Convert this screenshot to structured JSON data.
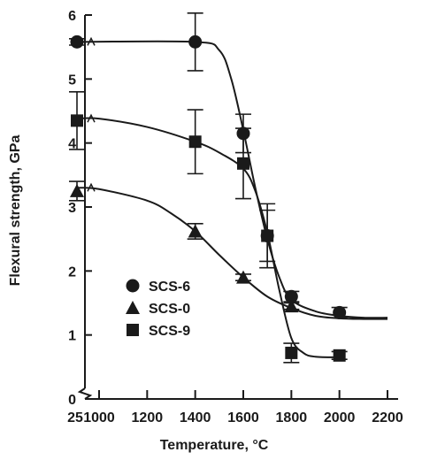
{
  "chart_data": {
    "type": "scatter",
    "title": "",
    "xlabel": "Temperature, °C",
    "ylabel": "Flexural strength, GPa",
    "x_tick_labels": [
      "25",
      "1000",
      "1200",
      "1400",
      "1600",
      "1800",
      "2000",
      "2200"
    ],
    "y_tick_labels": [
      "0",
      "1",
      "2",
      "3",
      "4",
      "5",
      "6"
    ],
    "xlim": [
      1000,
      2200
    ],
    "ylim": [
      0,
      6
    ],
    "x_axis_break_after": "25",
    "grid": false,
    "legend_position": "left-middle",
    "marker_color": "#1a1a1a",
    "series": [
      {
        "name": "SCS-6",
        "marker": "circle",
        "points": [
          {
            "x": "25",
            "y": 5.58,
            "err": 0.05
          },
          {
            "x": 1400,
            "y": 5.58,
            "err": 0.45
          },
          {
            "x": 1600,
            "y": 4.15,
            "err": 0.3
          },
          {
            "x": 1700,
            "y": 2.55,
            "err": 0.4
          },
          {
            "x": 1800,
            "y": 1.6,
            "err": 0.08
          },
          {
            "x": 2000,
            "y": 1.35,
            "err": 0.08
          }
        ],
        "curve": [
          {
            "x": "25",
            "y": 5.58
          },
          {
            "x": 1400,
            "y": 5.58
          },
          {
            "x": 1500,
            "y": 5.45
          },
          {
            "x": 1550,
            "y": 5.0
          },
          {
            "x": 1600,
            "y": 4.2
          },
          {
            "x": 1650,
            "y": 3.3
          },
          {
            "x": 1700,
            "y": 2.5
          },
          {
            "x": 1750,
            "y": 1.9
          },
          {
            "x": 1800,
            "y": 1.55
          },
          {
            "x": 1900,
            "y": 1.37
          },
          {
            "x": 2000,
            "y": 1.3
          },
          {
            "x": 2100,
            "y": 1.27
          },
          {
            "x": 2200,
            "y": 1.27
          }
        ]
      },
      {
        "name": "SCS-0",
        "marker": "triangle",
        "points": [
          {
            "x": "25",
            "y": 3.25,
            "err": 0.15
          },
          {
            "x": 1400,
            "y": 2.62,
            "err": 0.12
          },
          {
            "x": 1600,
            "y": 1.9,
            "err": 0.05
          },
          {
            "x": 1800,
            "y": 1.45,
            "err": 0.05
          }
        ],
        "curve": [
          {
            "x": "25",
            "y": 3.3
          },
          {
            "x": 1000,
            "y": 3.28
          },
          {
            "x": 1200,
            "y": 3.1
          },
          {
            "x": 1300,
            "y": 2.9
          },
          {
            "x": 1400,
            "y": 2.62
          },
          {
            "x": 1500,
            "y": 2.25
          },
          {
            "x": 1600,
            "y": 1.9
          },
          {
            "x": 1700,
            "y": 1.6
          },
          {
            "x": 1800,
            "y": 1.42
          },
          {
            "x": 1900,
            "y": 1.3
          },
          {
            "x": 2000,
            "y": 1.26
          },
          {
            "x": 2100,
            "y": 1.25
          },
          {
            "x": 2200,
            "y": 1.25
          }
        ]
      },
      {
        "name": "SCS-9",
        "marker": "square",
        "points": [
          {
            "x": "25",
            "y": 4.35,
            "err": 0.45
          },
          {
            "x": 1400,
            "y": 4.02,
            "err": 0.5
          },
          {
            "x": 1600,
            "y": 3.68,
            "err": 0.55
          },
          {
            "x": 1700,
            "y": 2.55,
            "err": 0.5
          },
          {
            "x": 1800,
            "y": 0.72,
            "err": 0.15
          },
          {
            "x": 2000,
            "y": 0.68,
            "err": 0.06
          }
        ],
        "curve": [
          {
            "x": "25",
            "y": 4.38
          },
          {
            "x": 1000,
            "y": 4.38
          },
          {
            "x": 1200,
            "y": 4.25
          },
          {
            "x": 1400,
            "y": 4.02
          },
          {
            "x": 1500,
            "y": 3.85
          },
          {
            "x": 1600,
            "y": 3.6
          },
          {
            "x": 1650,
            "y": 3.25
          },
          {
            "x": 1700,
            "y": 2.6
          },
          {
            "x": 1750,
            "y": 1.7
          },
          {
            "x": 1800,
            "y": 0.95
          },
          {
            "x": 1850,
            "y": 0.72
          },
          {
            "x": 1900,
            "y": 0.66
          },
          {
            "x": 2000,
            "y": 0.65
          }
        ]
      }
    ]
  }
}
